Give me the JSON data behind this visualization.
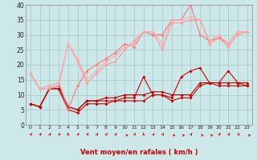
{
  "background_color": "#cce8e8",
  "grid_color": "#aacccc",
  "xlabel": "Vent moyen/en rafales ( km/h )",
  "xlim": [
    -0.5,
    23.5
  ],
  "ylim": [
    0,
    40
  ],
  "yticks": [
    0,
    5,
    10,
    15,
    20,
    25,
    30,
    35,
    40
  ],
  "xticks": [
    0,
    1,
    2,
    3,
    4,
    5,
    6,
    7,
    8,
    9,
    10,
    11,
    12,
    13,
    14,
    15,
    16,
    17,
    18,
    19,
    20,
    21,
    22,
    23
  ],
  "series": [
    {
      "x": [
        0,
        1,
        2,
        3,
        4,
        5,
        6,
        7,
        8,
        9,
        10,
        11,
        12,
        13,
        14,
        15,
        16,
        17,
        18,
        19,
        20,
        21,
        22,
        23
      ],
      "y": [
        7,
        6,
        12,
        12,
        6,
        5,
        8,
        8,
        8,
        8,
        8,
        8,
        8,
        10,
        10,
        8,
        9,
        9,
        13,
        14,
        13,
        13,
        13,
        13
      ],
      "color": "#cc0000",
      "lw": 0.8,
      "marker": "D",
      "ms": 2.0
    },
    {
      "x": [
        0,
        1,
        2,
        3,
        4,
        5,
        6,
        7,
        8,
        9,
        10,
        11,
        12,
        13,
        14,
        15,
        16,
        17,
        18,
        19,
        20,
        21,
        22,
        23
      ],
      "y": [
        7,
        6,
        12,
        12,
        5,
        4,
        7,
        7,
        7,
        8,
        9,
        9,
        16,
        10,
        10,
        9,
        16,
        18,
        19,
        14,
        14,
        18,
        14,
        13
      ],
      "color": "#cc0000",
      "lw": 0.8,
      "marker": "D",
      "ms": 2.0
    },
    {
      "x": [
        0,
        1,
        2,
        3,
        4,
        5,
        6,
        7,
        8,
        9,
        10,
        11,
        12,
        13,
        14,
        15,
        16,
        17,
        18,
        19,
        20,
        21,
        22,
        23
      ],
      "y": [
        7,
        6,
        12,
        13,
        6,
        5,
        8,
        8,
        9,
        9,
        10,
        10,
        10,
        11,
        11,
        10,
        10,
        10,
        14,
        14,
        14,
        14,
        14,
        14
      ],
      "color": "#bb0000",
      "lw": 0.8,
      "marker": "D",
      "ms": 2.0
    },
    {
      "x": [
        0,
        1,
        2,
        3,
        4,
        5,
        6,
        7,
        8,
        9,
        10,
        11,
        12,
        13,
        14,
        15,
        16,
        17,
        18,
        19,
        20,
        21,
        22,
        23
      ],
      "y": [
        17,
        12,
        12,
        13,
        27,
        21,
        14,
        17,
        20,
        21,
        25,
        28,
        31,
        31,
        25,
        34,
        34,
        35,
        35,
        27,
        29,
        26,
        30,
        31
      ],
      "color": "#ff9999",
      "lw": 0.8,
      "marker": "D",
      "ms": 2.0
    },
    {
      "x": [
        0,
        1,
        2,
        3,
        4,
        5,
        6,
        7,
        8,
        9,
        10,
        11,
        12,
        13,
        14,
        15,
        16,
        17,
        18,
        19,
        20,
        21,
        22,
        23
      ],
      "y": [
        17,
        12,
        13,
        14,
        5,
        13,
        18,
        20,
        22,
        24,
        27,
        26,
        31,
        30,
        30,
        35,
        35,
        40,
        30,
        28,
        29,
        27,
        31,
        31
      ],
      "color": "#ff7777",
      "lw": 0.8,
      "marker": "D",
      "ms": 2.0
    },
    {
      "x": [
        0,
        1,
        2,
        3,
        4,
        5,
        6,
        7,
        8,
        9,
        10,
        11,
        12,
        13,
        14,
        15,
        16,
        17,
        18,
        19,
        20,
        21,
        22,
        23
      ],
      "y": [
        17,
        12,
        13,
        14,
        27,
        22,
        15,
        18,
        21,
        23,
        26,
        27,
        31,
        31,
        27,
        35,
        35,
        36,
        35,
        28,
        30,
        27,
        31,
        31
      ],
      "color": "#ffaaaa",
      "lw": 0.8,
      "marker": "D",
      "ms": 2.0
    }
  ]
}
